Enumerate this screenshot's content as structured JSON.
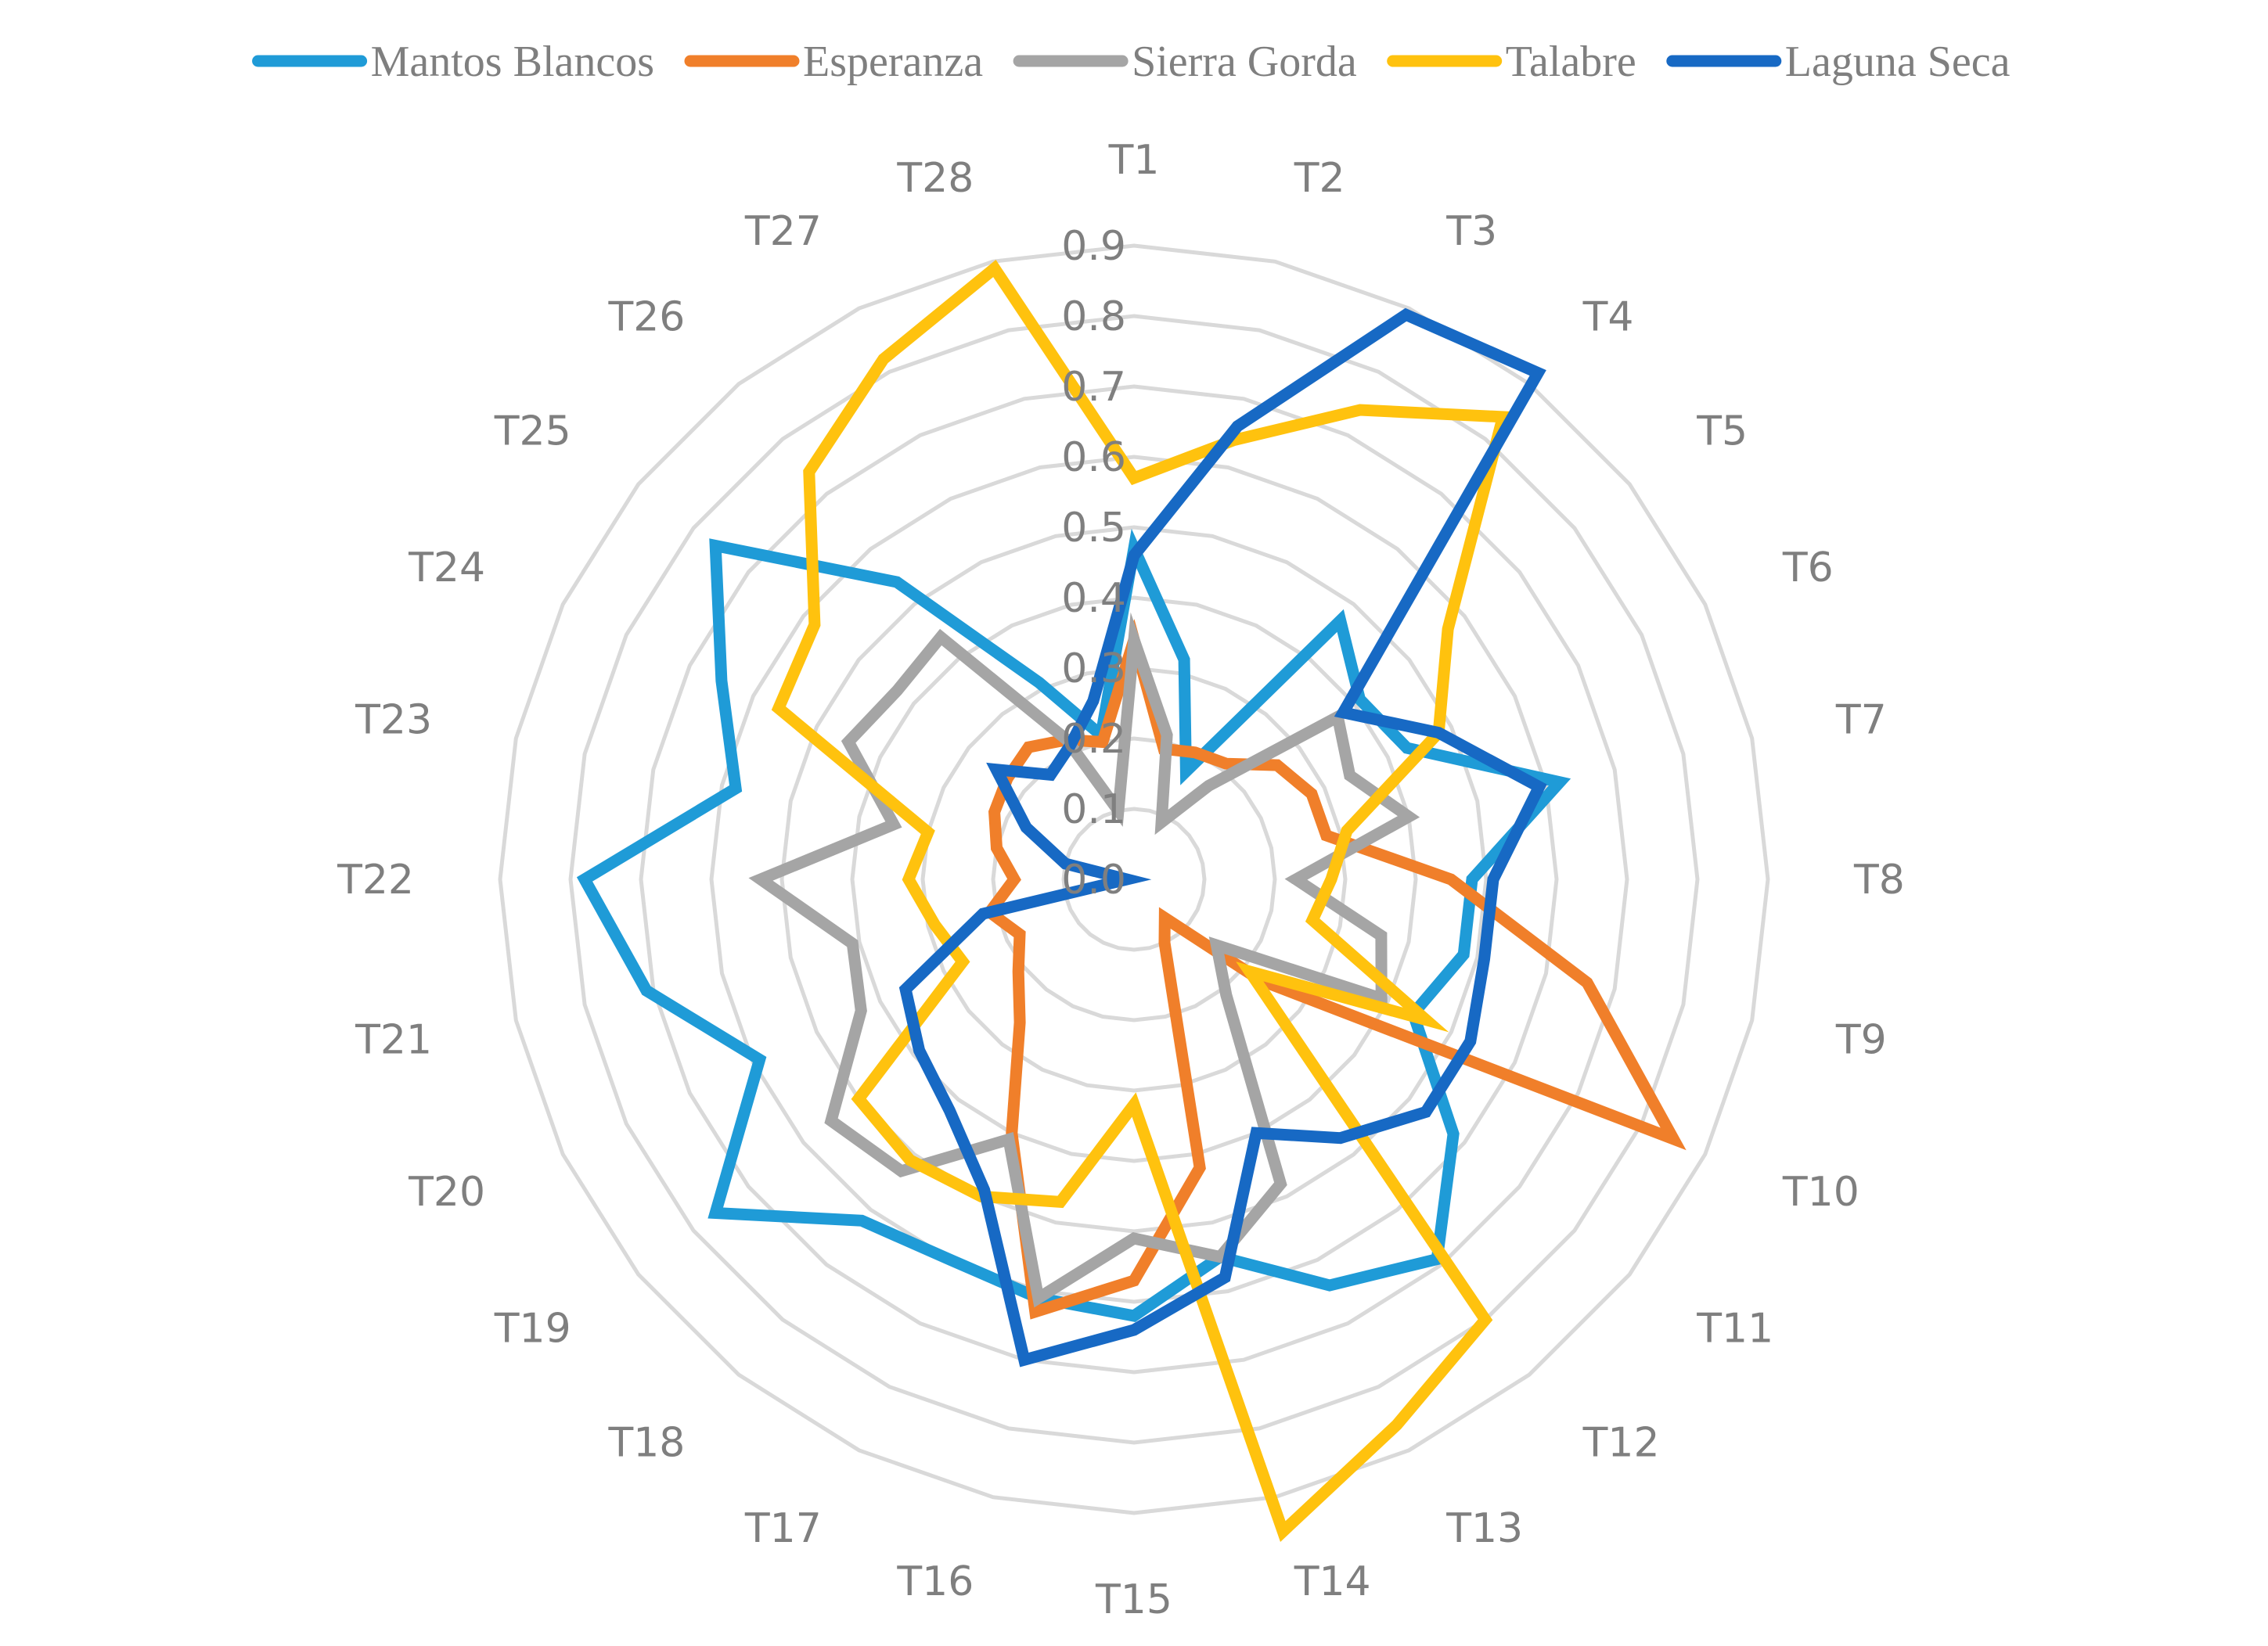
{
  "chart_data": {
    "type": "radar",
    "title": "",
    "categories": [
      "T1",
      "T2",
      "T3",
      "T4",
      "T5",
      "T6",
      "T7",
      "T8",
      "T9",
      "T10",
      "T11",
      "T12",
      "T13",
      "T14",
      "T15",
      "T16",
      "T17",
      "T18",
      "T19",
      "T20",
      "T21",
      "T22",
      "T23",
      "T24",
      "T25",
      "T26",
      "T27",
      "T28"
    ],
    "r_ticks": [
      "0.0",
      "0.1",
      "0.2",
      "0.3",
      "0.4",
      "0.5",
      "0.6",
      "0.7",
      "0.8",
      "0.9"
    ],
    "r_range": [
      0,
      0.9
    ],
    "grid": true,
    "legend_position": "top",
    "series": [
      {
        "name": "Mantos Blancos",
        "color": "#1f9bd7",
        "values": [
          0.47,
          0.32,
          0.17,
          0.47,
          0.41,
          0.43,
          0.62,
          0.48,
          0.48,
          0.44,
          0.58,
          0.69,
          0.64,
          0.55,
          0.62,
          0.61,
          0.6,
          0.62,
          0.76,
          0.59,
          0.71,
          0.78,
          0.58,
          0.65,
          0.76,
          0.54,
          0.31,
          0.21
        ]
      },
      {
        "name": "Esperanza",
        "color": "#f07f2a",
        "values": [
          0.34,
          0.19,
          0.2,
          0.21,
          0.26,
          0.28,
          0.28,
          0.45,
          0.66,
          0.85,
          0.23,
          0.07,
          0.1,
          0.42,
          0.57,
          0.63,
          0.4,
          0.26,
          0.21,
          0.18,
          0.21,
          0.17,
          0.2,
          0.22,
          0.23,
          0.24,
          0.22,
          0.2
        ]
      },
      {
        "name": "Sierra Gorda",
        "color": "#a5a5a5",
        "values": [
          0.34,
          0.21,
          0.09,
          0.17,
          0.37,
          0.34,
          0.4,
          0.23,
          0.36,
          0.39,
          0.15,
          0.21,
          0.48,
          0.55,
          0.51,
          0.61,
          0.41,
          0.53,
          0.55,
          0.43,
          0.41,
          0.53,
          0.35,
          0.45,
          0.43,
          0.44,
          0.22,
          0.1
        ]
      },
      {
        "name": "Talabre",
        "color": "#ffc20e",
        "values": [
          0.57,
          0.64,
          0.74,
          0.84,
          0.57,
          0.48,
          0.31,
          0.28,
          0.26,
          0.46,
          0.21,
          0.8,
          0.86,
          0.95,
          0.32,
          0.47,
          0.5,
          0.51,
          0.5,
          0.27,
          0.29,
          0.32,
          0.3,
          0.56,
          0.58,
          0.74,
          0.82,
          0.89
        ]
      },
      {
        "name": "Laguna Seca",
        "color": "#1769c4",
        "values": [
          0.46,
          0.66,
          0.89,
          0.92,
          0.38,
          0.48,
          0.59,
          0.51,
          0.51,
          0.53,
          0.53,
          0.47,
          0.4,
          0.58,
          0.64,
          0.7,
          0.49,
          0.42,
          0.39,
          0.36,
          0.22,
          0.01,
          0.1,
          0.17,
          0.25,
          0.19,
          0.21,
          0.26
        ]
      }
    ]
  }
}
